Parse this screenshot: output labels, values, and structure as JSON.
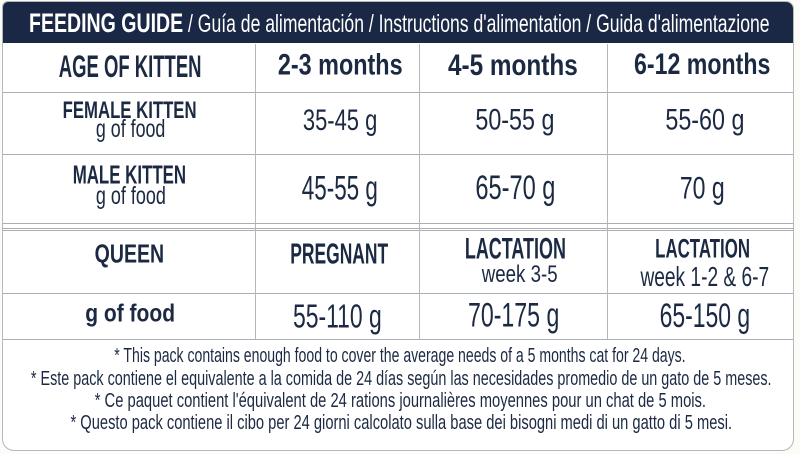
{
  "colors": {
    "navy": "#1a2845",
    "text_navy": "#1b2942",
    "grid_line": "#a9afb4",
    "card_border": "#b3b8bb",
    "background": "#ffffff"
  },
  "header": {
    "title": "FEEDING GUIDE",
    "subtitle": "/ Guía de alimentación / Instructions d'alimentation / Guida d'alimentazione"
  },
  "kitten_table": {
    "columns": [
      "AGE OF KITTEN",
      "2-3 months",
      "4-5 months",
      "6-12 months"
    ],
    "rows": [
      {
        "label": "FEMALE KITTEN",
        "sublabel": "g of food",
        "values": [
          "35-45 g",
          "50-55 g",
          "55-60 g"
        ]
      },
      {
        "label": "MALE KITTEN",
        "sublabel": "g of food",
        "values": [
          "45-55 g",
          "65-70 g",
          "70 g"
        ]
      }
    ]
  },
  "queen_table": {
    "header_row": {
      "label": "QUEEN",
      "cols": [
        {
          "title": "PREGNANT",
          "sub": ""
        },
        {
          "title": "LACTATION",
          "sub": "week 3-5"
        },
        {
          "title": "LACTATION",
          "sub": "week 1-2 & 6-7"
        }
      ]
    },
    "amount_row": {
      "label": "g of food",
      "values": [
        "55-110 g",
        "70-175 g",
        "65-150 g"
      ]
    }
  },
  "notes": [
    "* This pack contains enough food to cover the average needs of a 5 months cat for 24 days.",
    "* Este pack contiene el equivalente a la comida de 24 días según las necesidades promedio de un gato de 5 meses.",
    "* Ce paquet contient l'équivalent de 24 rations journalières moyennes pour un chat de 5 mois.",
    "* Questo pack contiene il cibo per 24 giorni calcolato sulla base dei bisogni medi di un gatto di 5 mesi."
  ],
  "chart_data": {
    "type": "table",
    "title": "FEEDING GUIDE",
    "sections": [
      {
        "columns": [
          "AGE OF KITTEN",
          "2-3 months",
          "4-5 months",
          "6-12 months"
        ],
        "rows": [
          [
            "FEMALE KITTEN g of food",
            "35-45 g",
            "50-55 g",
            "55-60 g"
          ],
          [
            "MALE KITTEN g of food",
            "45-55 g",
            "65-70 g",
            "70 g"
          ]
        ]
      },
      {
        "columns": [
          "QUEEN",
          "PREGNANT",
          "LACTATION week 3-5",
          "LACTATION week 1-2 & 6-7"
        ],
        "rows": [
          [
            "g of food",
            "55-110 g",
            "70-175 g",
            "65-150 g"
          ]
        ]
      }
    ]
  }
}
